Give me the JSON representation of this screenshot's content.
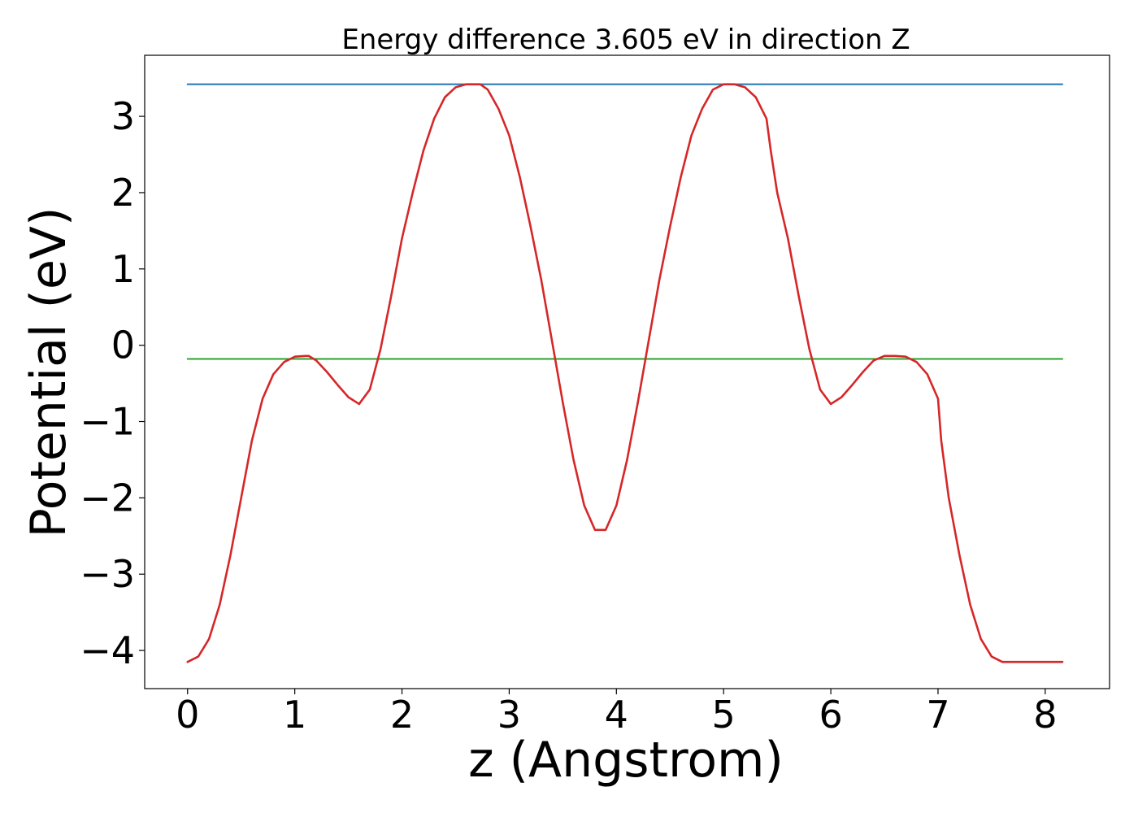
{
  "chart_data": {
    "type": "line",
    "title": "Energy difference 3.605 eV in direction Z",
    "xlabel": "z (Angstrom)",
    "ylabel": "Potential (eV)",
    "xlim": [
      -0.4,
      8.6
    ],
    "ylim": [
      -4.5,
      3.8
    ],
    "xticks": [
      0,
      1,
      2,
      3,
      4,
      5,
      6,
      7,
      8
    ],
    "yticks": [
      3,
      2,
      1,
      0,
      -1,
      -2,
      -3,
      -4
    ],
    "grid": false,
    "legend": "none",
    "series": [
      {
        "color": "#d62728",
        "x": [
          0.0,
          0.1,
          0.2,
          0.3,
          0.4,
          0.5,
          0.6,
          0.7,
          0.8,
          0.9,
          1.0,
          1.1,
          1.13,
          1.2,
          1.3,
          1.4,
          1.5,
          1.6,
          1.7,
          1.8,
          1.9,
          2.0,
          2.1,
          2.2,
          2.3,
          2.4,
          2.5,
          2.6,
          2.7,
          2.73,
          2.8,
          2.9,
          3.0,
          3.1,
          3.2,
          3.3,
          3.4,
          3.5,
          3.6,
          3.7,
          3.8,
          3.9,
          4.0,
          4.1,
          4.2,
          4.3,
          4.4,
          4.5,
          4.6,
          4.7,
          4.8,
          4.9,
          5.0,
          5.1,
          5.2,
          5.3,
          5.4,
          5.44,
          5.5,
          5.6,
          5.7,
          5.8,
          5.9,
          6.0,
          6.1,
          6.2,
          6.3,
          6.4,
          6.5,
          6.6,
          6.7,
          6.8,
          6.9,
          7.0,
          7.03,
          7.1,
          7.2,
          7.3,
          7.4,
          7.5,
          7.6,
          7.7,
          7.8,
          7.9,
          8.0,
          8.1,
          8.16
        ],
        "y": [
          -4.15,
          -4.08,
          -3.85,
          -3.4,
          -2.75,
          -2.0,
          -1.25,
          -0.7,
          -0.38,
          -0.22,
          -0.15,
          -0.14,
          -0.14,
          -0.2,
          -0.35,
          -0.52,
          -0.68,
          -0.77,
          -0.58,
          -0.05,
          0.65,
          1.4,
          2.0,
          2.55,
          2.97,
          3.25,
          3.38,
          3.42,
          3.42,
          3.42,
          3.35,
          3.1,
          2.75,
          2.2,
          1.55,
          0.85,
          0.05,
          -0.75,
          -1.5,
          -2.1,
          -2.42,
          -2.42,
          -2.1,
          -1.5,
          -0.75,
          0.05,
          0.85,
          1.55,
          2.2,
          2.75,
          3.1,
          3.35,
          3.42,
          3.42,
          3.38,
          3.25,
          2.97,
          2.55,
          2.0,
          1.4,
          0.65,
          -0.05,
          -0.58,
          -0.77,
          -0.68,
          -0.52,
          -0.35,
          -0.2,
          -0.14,
          -0.14,
          -0.15,
          -0.22,
          -0.38,
          -0.7,
          -1.25,
          -2.0,
          -2.75,
          -3.4,
          -3.85,
          -4.08,
          -4.15,
          -4.15,
          -4.15,
          -4.15,
          -4.15,
          -4.15,
          -4.15
        ]
      },
      {
        "color": "#1f77b4",
        "x": [
          0.0,
          8.16
        ],
        "y": [
          3.42,
          3.42
        ]
      },
      {
        "color": "#2ca02c",
        "x": [
          0.0,
          8.16
        ],
        "y": [
          -0.18,
          -0.18
        ]
      }
    ]
  }
}
